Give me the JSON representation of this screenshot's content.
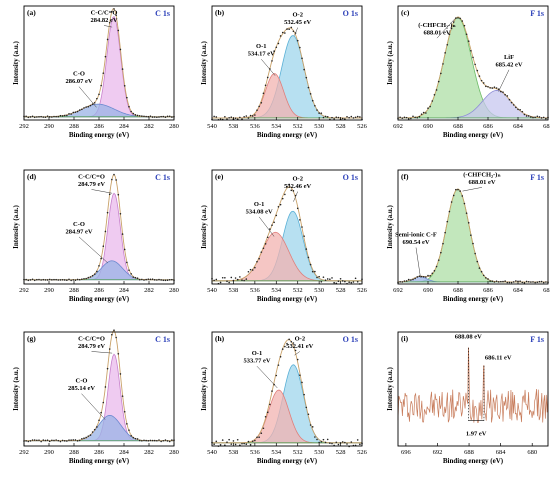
{
  "chart_data": [
    {
      "type": "line",
      "panel_label": "(a)",
      "element": "C 1s",
      "xlabel": "Binding energy (eV)",
      "ylabel": "Intensity (a.u.)",
      "xlim": [
        292,
        280
      ],
      "ylim": [
        0,
        1.08
      ],
      "xticks": [
        292,
        290,
        288,
        286,
        284,
        282,
        280
      ],
      "yticks": [],
      "peaks": [
        {
          "name": "C-C/C=O",
          "center": 284.82,
          "height": 0.95,
          "width": 0.55,
          "fill": "#e9b9ec",
          "stroke": "#c882cc",
          "label_lines": [
            "C-C/C=O",
            "284.82 eV"
          ],
          "label_at": [
            285.6,
            1.0
          ],
          "arrow_to": [
            284.95,
            0.88
          ]
        },
        {
          "name": "C-O",
          "center": 286.07,
          "height": 0.12,
          "width": 1.3,
          "fill": "#9ab3e6",
          "stroke": "#6d8ad0",
          "label_lines": [
            "C-O",
            "286.07 eV"
          ],
          "label_at": [
            287.6,
            0.42
          ],
          "arrow_to": [
            286.2,
            0.12
          ]
        }
      ],
      "baseline": 0.03,
      "envelope_color": "#c9a26a",
      "noise": 0.006
    },
    {
      "type": "line",
      "panel_label": "(b)",
      "element": "O 1s",
      "xlabel": "Binding energy (eV)",
      "ylabel": "Intensity (a.u.)",
      "xlim": [
        540,
        526
      ],
      "ylim": [
        0,
        1.08
      ],
      "xticks": [
        540,
        538,
        536,
        534,
        532,
        530,
        528,
        526
      ],
      "yticks": [],
      "peaks": [
        {
          "name": "O-2",
          "center": 532.45,
          "height": 0.78,
          "width": 1.05,
          "fill": "#9fd6ec",
          "stroke": "#5ab0d6",
          "label_lines": [
            "O-2",
            "532.45 eV"
          ],
          "label_at": [
            532.0,
            0.98
          ],
          "arrow_to": [
            532.3,
            0.8
          ]
        },
        {
          "name": "O-1",
          "center": 534.17,
          "height": 0.42,
          "width": 0.85,
          "fill": "#f2b3b0",
          "stroke": "#e07f7b",
          "label_lines": [
            "O-1",
            "534.17 eV"
          ],
          "label_at": [
            535.4,
            0.68
          ],
          "arrow_to": [
            534.1,
            0.42
          ]
        }
      ],
      "baseline": 0.02,
      "envelope_color": "#c9a26a",
      "noise": 0.02
    },
    {
      "type": "line",
      "panel_label": "(c)",
      "element": "F 1s",
      "xlabel": "Binding energy (eV)",
      "ylabel": "Intensity (a.u.)",
      "xlim": [
        692,
        682
      ],
      "ylim": [
        0,
        1.08
      ],
      "xticks": [
        692,
        690,
        688,
        686,
        684,
        682
      ],
      "yticks": [],
      "peaks": [
        {
          "name": "(-CHFCH2-)n",
          "center": 688.01,
          "height": 0.95,
          "width": 0.9,
          "fill": "#aedfa5",
          "stroke": "#6cbb66",
          "label_lines": [
            "(-CHFCH₂-)ₙ",
            "688.01 eV"
          ],
          "label_at": [
            689.4,
            0.88
          ],
          "arrow_to": [
            688.2,
            0.96
          ]
        },
        {
          "name": "LiF",
          "center": 685.42,
          "height": 0.26,
          "width": 0.95,
          "fill": "#c7c7ef",
          "stroke": "#8f8fd6",
          "label_lines": [
            "LiF",
            "685.42 eV"
          ],
          "label_at": [
            684.6,
            0.58
          ],
          "arrow_to": [
            685.3,
            0.27
          ]
        }
      ],
      "baseline": 0.02,
      "envelope_color": "#c9a26a",
      "noise": 0.012
    },
    {
      "type": "line",
      "panel_label": "(d)",
      "element": "C 1s",
      "xlabel": "Binding energy (eV)",
      "ylabel": "Intensity (a.u.)",
      "xlim": [
        292,
        280
      ],
      "ylim": [
        0,
        1.08
      ],
      "xticks": [
        292,
        290,
        288,
        286,
        284,
        282,
        280
      ],
      "yticks": [],
      "peaks": [
        {
          "name": "C-C/C=O",
          "center": 284.79,
          "height": 0.82,
          "width": 0.5,
          "fill": "#e9b9ec",
          "stroke": "#c882cc",
          "label_lines": [
            "C-C/C=O",
            "284.79 eV"
          ],
          "label_at": [
            286.6,
            1.0
          ],
          "arrow_to": [
            284.95,
            0.86
          ]
        },
        {
          "name": "C-O",
          "center": 284.97,
          "height": 0.18,
          "width": 0.85,
          "fill": "#9ab3e6",
          "stroke": "#6d8ad0",
          "label_lines": [
            "C-O",
            "284.97 eV"
          ],
          "label_at": [
            287.6,
            0.55
          ],
          "arrow_to": [
            285.3,
            0.2
          ]
        }
      ],
      "baseline": 0.04,
      "envelope_color": "#c9a26a",
      "noise": 0.006
    },
    {
      "type": "line",
      "panel_label": "(e)",
      "element": "O 1s",
      "xlabel": "Binding energy (eV)",
      "ylabel": "Intensity (a.u.)",
      "xlim": [
        540,
        526
      ],
      "ylim": [
        0,
        1.08
      ],
      "xticks": [
        540,
        538,
        536,
        534,
        532,
        530,
        528,
        526
      ],
      "yticks": [],
      "peaks": [
        {
          "name": "O-2",
          "center": 532.46,
          "height": 0.66,
          "width": 0.95,
          "fill": "#9fd6ec",
          "stroke": "#5ab0d6",
          "label_lines": [
            "O-2",
            "532.46 eV"
          ],
          "label_at": [
            532.0,
            0.98
          ],
          "arrow_to": [
            532.4,
            0.78
          ]
        },
        {
          "name": "O-1",
          "center": 534.08,
          "height": 0.46,
          "width": 1.25,
          "fill": "#f2b3b0",
          "stroke": "#e07f7b",
          "label_lines": [
            "O-1",
            "534.08 eV"
          ],
          "label_at": [
            535.6,
            0.74
          ],
          "arrow_to": [
            534.2,
            0.45
          ]
        }
      ],
      "baseline": 0.03,
      "envelope_color": "#c9a26a",
      "noise": 0.03
    },
    {
      "type": "line",
      "panel_label": "(f)",
      "element": "F 1s",
      "xlabel": "Binding energy (eV)",
      "ylabel": "Intensity (a.u.)",
      "xlim": [
        692,
        682
      ],
      "ylim": [
        0,
        1.08
      ],
      "xticks": [
        692,
        690,
        688,
        686,
        684,
        682
      ],
      "yticks": [],
      "peaks": [
        {
          "name": "(-CHFCH2-)n",
          "center": 688.01,
          "height": 0.88,
          "width": 0.75,
          "fill": "#aedfa5",
          "stroke": "#6cbb66",
          "label_lines": [
            "(-CHFCH₂-)ₙ",
            "688.01 eV"
          ],
          "label_at": [
            686.4,
            1.02
          ],
          "arrow_to": [
            687.7,
            0.88
          ]
        },
        {
          "name": "Semi-ionic C-F",
          "center": 690.54,
          "height": 0.05,
          "width": 0.45,
          "fill": "#9ab3e6",
          "stroke": "#6d8ad0",
          "label_lines": [
            "Semi-ionic C-F",
            "690.54 eV"
          ],
          "label_at": [
            690.8,
            0.45
          ],
          "arrow_to": [
            690.5,
            0.06
          ]
        }
      ],
      "baseline": 0.02,
      "envelope_color": "#c9a26a",
      "noise": 0.01
    },
    {
      "type": "line",
      "panel_label": "(g)",
      "element": "C 1s",
      "xlabel": "Binding energy (eV)",
      "ylabel": "Intensity (a.u.)",
      "xlim": [
        292,
        280
      ],
      "ylim": [
        0,
        1.08
      ],
      "xticks": [
        292,
        290,
        288,
        286,
        284,
        282,
        280
      ],
      "yticks": [],
      "peaks": [
        {
          "name": "C-C/C=O",
          "center": 284.79,
          "height": 0.82,
          "width": 0.48,
          "fill": "#e9b9ec",
          "stroke": "#c882cc",
          "label_lines": [
            "C-C/C=O",
            "284.79 eV"
          ],
          "label_at": [
            286.6,
            1.0
          ],
          "arrow_to": [
            284.95,
            0.88
          ]
        },
        {
          "name": "C-O",
          "center": 285.14,
          "height": 0.24,
          "width": 0.9,
          "fill": "#9ab3e6",
          "stroke": "#6d8ad0",
          "label_lines": [
            "C-O",
            "285.14 eV"
          ],
          "label_at": [
            287.4,
            0.6
          ],
          "arrow_to": [
            285.5,
            0.25
          ]
        }
      ],
      "baseline": 0.05,
      "envelope_color": "#c9a26a",
      "noise": 0.008
    },
    {
      "type": "line",
      "panel_label": "(h)",
      "element": "O 1s",
      "xlabel": "Binding energy (eV)",
      "ylabel": "Intensity (a.u.)",
      "xlim": [
        540,
        526
      ],
      "ylim": [
        0,
        1.08
      ],
      "xticks": [
        540,
        538,
        536,
        534,
        532,
        530,
        528,
        526
      ],
      "yticks": [],
      "peaks": [
        {
          "name": "O-2",
          "center": 532.41,
          "height": 0.74,
          "width": 0.95,
          "fill": "#9fd6ec",
          "stroke": "#5ab0d6",
          "label_lines": [
            "O-2",
            "532.41 eV"
          ],
          "label_at": [
            531.8,
            1.0
          ],
          "arrow_to": [
            532.3,
            0.86
          ]
        },
        {
          "name": "O-1",
          "center": 533.77,
          "height": 0.5,
          "width": 0.95,
          "fill": "#f2b3b0",
          "stroke": "#e07f7b",
          "label_lines": [
            "O-1",
            "533.77 eV"
          ],
          "label_at": [
            535.8,
            0.86
          ],
          "arrow_to": [
            533.9,
            0.55
          ]
        }
      ],
      "baseline": 0.03,
      "envelope_color": "#c9a26a",
      "noise": 0.035
    },
    {
      "type": "line",
      "panel_label": "(i)",
      "element": "F 1s",
      "xlabel": "Binding energy (eV)",
      "ylabel": "Intensity (a.u.)",
      "xlim": [
        697,
        678
      ],
      "ylim": [
        0,
        1.08
      ],
      "xticks": [
        696,
        692,
        688,
        684,
        680
      ],
      "yticks": [],
      "peaks": [],
      "noisy_line": {
        "color": "#c77b5a",
        "mean": 0.38,
        "amplitude": 0.16
      },
      "spikes": [
        {
          "x": 688.08,
          "y": 0.93
        },
        {
          "x": 686.11,
          "y": 0.76
        }
      ],
      "annotations": [
        {
          "text": "688.08 eV",
          "at": [
            688.1,
            1.02
          ]
        },
        {
          "text": "686.11 eV",
          "at": [
            684.3,
            0.82
          ]
        },
        {
          "text": "1.97 eV",
          "at": [
            687.1,
            0.1
          ]
        }
      ],
      "gap": {
        "from": 688.08,
        "to": 686.11,
        "y": 0.24
      }
    }
  ],
  "styles": {
    "element_color": "#2a3eb8",
    "axis_color": "#000000",
    "fit_color": "#7a7a7a",
    "point_color": "#222222"
  }
}
